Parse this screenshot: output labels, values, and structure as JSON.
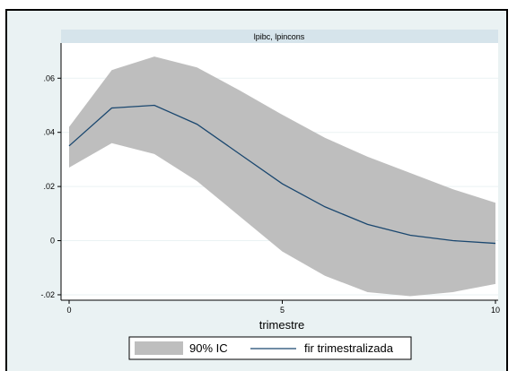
{
  "chart_data": {
    "type": "line",
    "title": "",
    "panel_title": "lpibc, lpincons",
    "xlabel": "trimestre",
    "ylabel": "",
    "xlim": [
      0,
      10
    ],
    "ylim": [
      -0.022,
      0.073
    ],
    "x_ticks": [
      0,
      5,
      10
    ],
    "x_tick_labels": [
      "0",
      "5",
      "10"
    ],
    "y_ticks": [
      -0.02,
      0,
      0.02,
      0.04,
      0.06
    ],
    "y_tick_labels": [
      "-.02",
      "0",
      ".02",
      ".04",
      ".06"
    ],
    "grid": true,
    "legend_position": "bottom",
    "series": [
      {
        "name": "90% IC",
        "kind": "band",
        "color": "#bebebe",
        "x": [
          0,
          1,
          2,
          3,
          4,
          5,
          6,
          7,
          8,
          9,
          10
        ],
        "lower": [
          0.027,
          0.036,
          0.032,
          0.022,
          0.009,
          -0.004,
          -0.013,
          -0.019,
          -0.0205,
          -0.019,
          -0.016
        ],
        "upper": [
          0.042,
          0.063,
          0.068,
          0.064,
          0.0555,
          0.0465,
          0.038,
          0.031,
          0.025,
          0.019,
          0.014
        ]
      },
      {
        "name": "fir trimestralizada",
        "kind": "line",
        "color": "#1a476f",
        "x": [
          0,
          1,
          2,
          3,
          4,
          5,
          6,
          7,
          8,
          9,
          10
        ],
        "values": [
          0.035,
          0.049,
          0.05,
          0.043,
          0.032,
          0.021,
          0.0125,
          0.006,
          0.002,
          0.0,
          -0.001
        ]
      }
    ]
  }
}
